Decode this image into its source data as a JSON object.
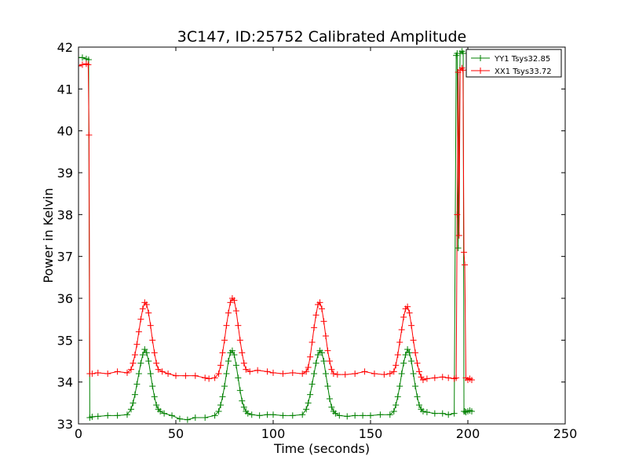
{
  "chart_data": {
    "type": "line",
    "title": "3C147, ID:25752 Calibrated Amplitude",
    "xlabel": "Time (seconds)",
    "ylabel": "Power in Kelvin",
    "xlim": [
      0,
      250
    ],
    "ylim": [
      33,
      42
    ],
    "xticks": [
      "0",
      "50",
      "100",
      "150",
      "200",
      "250"
    ],
    "yticks": [
      "33",
      "34",
      "35",
      "36",
      "37",
      "38",
      "39",
      "40",
      "41",
      "42"
    ],
    "grid": false,
    "legend_position": "top-right",
    "marker": "+",
    "series": [
      {
        "name": "YY1 Tsys32.85",
        "color": "#008000",
        "x": [
          0,
          2,
          4,
          5.2,
          5.8,
          7,
          10,
          15,
          20,
          25,
          27,
          28,
          29,
          30,
          31,
          32,
          33,
          34,
          35,
          36,
          37,
          38,
          39,
          40,
          41,
          42,
          44,
          48,
          52,
          56,
          60,
          65,
          70,
          72,
          73,
          74,
          75,
          76,
          77,
          78,
          79,
          80,
          81,
          82,
          83,
          84,
          85,
          86,
          87,
          89,
          93,
          97,
          100,
          105,
          110,
          115,
          117,
          118,
          119,
          120,
          121,
          122,
          123,
          124,
          125,
          126,
          127,
          128,
          129,
          130,
          131,
          132,
          134,
          138,
          142,
          146,
          150,
          155,
          160,
          162,
          163,
          164,
          165,
          166,
          167,
          168,
          169,
          170,
          171,
          172,
          173,
          174,
          175,
          176,
          177,
          179,
          183,
          187,
          190,
          193,
          194,
          194.5,
          195,
          196,
          197,
          197.6,
          198,
          198.4,
          199,
          200,
          201,
          202
        ],
        "y": [
          41.75,
          41.75,
          41.72,
          41.7,
          33.15,
          33.17,
          33.18,
          33.2,
          33.2,
          33.22,
          33.35,
          33.5,
          33.7,
          33.95,
          34.2,
          34.45,
          34.65,
          34.78,
          34.7,
          34.5,
          34.2,
          33.9,
          33.65,
          33.45,
          33.35,
          33.3,
          33.25,
          33.2,
          33.12,
          33.1,
          33.15,
          33.15,
          33.2,
          33.3,
          33.45,
          33.65,
          33.9,
          34.2,
          34.5,
          34.7,
          34.75,
          34.65,
          34.4,
          34.1,
          33.8,
          33.55,
          33.4,
          33.3,
          33.25,
          33.22,
          33.2,
          33.22,
          33.22,
          33.2,
          33.2,
          33.22,
          33.35,
          33.5,
          33.7,
          33.95,
          34.2,
          34.45,
          34.65,
          34.75,
          34.7,
          34.5,
          34.2,
          33.9,
          33.6,
          33.4,
          33.3,
          33.25,
          33.2,
          33.18,
          33.2,
          33.2,
          33.2,
          33.22,
          33.22,
          33.3,
          33.45,
          33.65,
          33.9,
          34.2,
          34.45,
          34.65,
          34.78,
          34.7,
          34.5,
          34.2,
          33.9,
          33.65,
          33.45,
          33.35,
          33.3,
          33.28,
          33.25,
          33.25,
          33.22,
          33.25,
          41.8,
          41.85,
          37.2,
          41.85,
          41.9,
          41.85,
          33.3,
          33.3,
          33.28,
          33.3,
          33.32,
          33.3
        ]
      },
      {
        "name": "XX1 Tsys33.72",
        "color": "#ff0000",
        "x": [
          0,
          2,
          4,
          5,
          5.4,
          5.8,
          7,
          10,
          15,
          20,
          25,
          27,
          28,
          29,
          30,
          31,
          32,
          33,
          34,
          35,
          36,
          37,
          38,
          39,
          40,
          41,
          43,
          46,
          50,
          55,
          60,
          65,
          67,
          70,
          72,
          73,
          74,
          75,
          76,
          77,
          78,
          79,
          80,
          81,
          82,
          83,
          84,
          85,
          86,
          88,
          92,
          97,
          100,
          105,
          110,
          115,
          117,
          118,
          119,
          120,
          121,
          122,
          123,
          124,
          125,
          126,
          127,
          128,
          129,
          130,
          131,
          133,
          137,
          142,
          147,
          152,
          157,
          160,
          162,
          163,
          164,
          165,
          166,
          167,
          168,
          169,
          170,
          171,
          172,
          173,
          174,
          175,
          176,
          177,
          179,
          183,
          187,
          190,
          193,
          194,
          194.5,
          195,
          195.5,
          196,
          197,
          197.5,
          198,
          198.4,
          199,
          200,
          201,
          202
        ],
        "y": [
          41.55,
          41.58,
          41.6,
          41.58,
          39.9,
          34.2,
          34.2,
          34.22,
          34.2,
          34.25,
          34.22,
          34.3,
          34.45,
          34.65,
          34.9,
          35.2,
          35.5,
          35.75,
          35.9,
          35.85,
          35.65,
          35.35,
          35.0,
          34.7,
          34.45,
          34.3,
          34.25,
          34.2,
          34.15,
          34.15,
          34.15,
          34.1,
          34.08,
          34.1,
          34.2,
          34.4,
          34.7,
          35.0,
          35.35,
          35.65,
          35.9,
          36.0,
          35.95,
          35.7,
          35.35,
          35.0,
          34.7,
          34.45,
          34.3,
          34.25,
          34.28,
          34.25,
          34.22,
          34.2,
          34.22,
          34.2,
          34.25,
          34.35,
          34.6,
          34.95,
          35.3,
          35.6,
          35.85,
          35.9,
          35.75,
          35.45,
          35.1,
          34.75,
          34.5,
          34.3,
          34.2,
          34.18,
          34.18,
          34.2,
          34.25,
          34.2,
          34.18,
          34.2,
          34.25,
          34.4,
          34.65,
          34.95,
          35.25,
          35.55,
          35.75,
          35.8,
          35.65,
          35.35,
          35.0,
          34.7,
          34.45,
          34.25,
          34.12,
          34.05,
          34.08,
          34.1,
          34.12,
          34.1,
          34.08,
          34.1,
          38.0,
          41.4,
          37.5,
          41.45,
          41.5,
          41.45,
          37.1,
          36.8,
          34.1,
          34.05,
          34.08,
          34.05
        ]
      }
    ]
  }
}
